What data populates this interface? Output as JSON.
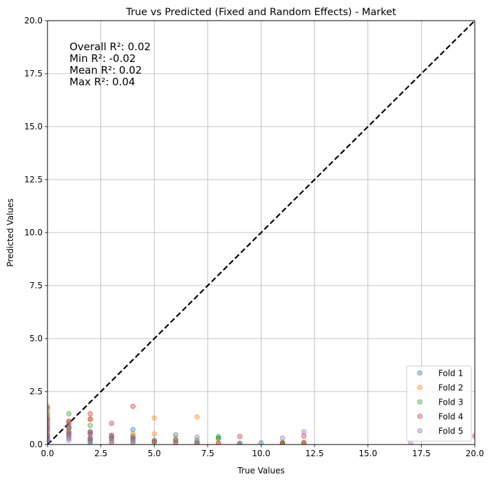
{
  "chart_data": {
    "type": "scatter",
    "title": "True vs Predicted (Fixed and Random Effects) - Market",
    "xlabel": "True Values",
    "ylabel": "Predicted Values",
    "xlim": [
      0,
      20
    ],
    "ylim": [
      0,
      20
    ],
    "xticks": [
      "0.0",
      "2.5",
      "5.0",
      "7.5",
      "10.0",
      "12.5",
      "15.0",
      "17.5",
      "20.0"
    ],
    "yticks": [
      "0.0",
      "2.5",
      "5.0",
      "7.5",
      "10.0",
      "12.5",
      "15.0",
      "17.5",
      "20.0"
    ],
    "grid": true,
    "legend_position": "bottom-right",
    "reference_line": {
      "label": "y = x",
      "from": [
        0,
        0
      ],
      "to": [
        20,
        20
      ],
      "color": "#000000",
      "style": "dashed"
    },
    "annotations": [
      "Overall R²: 0.02",
      "Min R²: -0.02",
      "Mean R²: 0.02",
      "Max R²: 0.04"
    ],
    "series": [
      {
        "name": "Fold 1",
        "color": "#1f77b4",
        "points": [
          [
            0,
            1.3
          ],
          [
            0,
            0.9
          ],
          [
            0,
            0.5
          ],
          [
            0,
            0.2
          ],
          [
            1,
            0.8
          ],
          [
            1,
            0.5
          ],
          [
            1,
            0.3
          ],
          [
            2,
            0.6
          ],
          [
            2,
            0.3
          ],
          [
            2,
            0.1
          ],
          [
            3,
            0.3
          ],
          [
            3,
            0.1
          ],
          [
            4,
            0.7
          ],
          [
            4,
            0.3
          ],
          [
            5,
            0.2
          ],
          [
            6,
            0.45
          ],
          [
            6,
            0.2
          ],
          [
            7,
            0.1
          ],
          [
            8,
            0.3
          ],
          [
            9,
            0.05
          ],
          [
            10,
            0.08
          ],
          [
            11,
            0.05
          ],
          [
            12,
            0.05
          ]
        ]
      },
      {
        "name": "Fold 2",
        "color": "#ff7f0e",
        "points": [
          [
            0,
            1.4
          ],
          [
            0,
            1.0
          ],
          [
            0,
            0.6
          ],
          [
            0,
            0.3
          ],
          [
            1,
            1.1
          ],
          [
            1,
            0.7
          ],
          [
            1,
            0.4
          ],
          [
            2,
            1.2
          ],
          [
            2,
            0.5
          ],
          [
            2,
            0.2
          ],
          [
            3,
            0.4
          ],
          [
            3,
            0.1
          ],
          [
            4,
            0.5
          ],
          [
            4,
            0.2
          ],
          [
            5,
            1.25
          ],
          [
            5,
            0.5
          ],
          [
            6,
            0.3
          ],
          [
            7,
            1.3
          ],
          [
            8,
            0.1
          ],
          [
            11,
            0.05
          ],
          [
            12,
            0.05
          ],
          [
            18,
            0.65
          ]
        ]
      },
      {
        "name": "Fold 3",
        "color": "#2ca02c",
        "points": [
          [
            0,
            1.8
          ],
          [
            0,
            1.5
          ],
          [
            0,
            1.1
          ],
          [
            0,
            0.7
          ],
          [
            0,
            0.3
          ],
          [
            1,
            1.45
          ],
          [
            1,
            1.0
          ],
          [
            1,
            0.6
          ],
          [
            2,
            0.9
          ],
          [
            2,
            0.5
          ],
          [
            2,
            0.2
          ],
          [
            3,
            0.3
          ],
          [
            4,
            0.4
          ],
          [
            4,
            0.1
          ],
          [
            5,
            0.1
          ],
          [
            6,
            0.2
          ],
          [
            7,
            0.2
          ],
          [
            8,
            0.38
          ],
          [
            8,
            0.3
          ],
          [
            9,
            0.05
          ],
          [
            11,
            0.1
          ]
        ]
      },
      {
        "name": "Fold 4",
        "color": "#d62728",
        "points": [
          [
            0,
            1.7
          ],
          [
            0,
            1.2
          ],
          [
            0,
            0.8
          ],
          [
            0,
            0.4
          ],
          [
            1,
            1.1
          ],
          [
            1,
            0.8
          ],
          [
            1,
            0.5
          ],
          [
            2,
            1.45
          ],
          [
            2,
            1.2
          ],
          [
            2,
            0.6
          ],
          [
            2,
            0.3
          ],
          [
            3,
            1.0
          ],
          [
            3,
            0.4
          ],
          [
            4,
            1.8
          ],
          [
            4,
            0.3
          ],
          [
            5,
            0.15
          ],
          [
            6,
            0.1
          ],
          [
            7,
            0.05
          ],
          [
            8,
            0.05
          ],
          [
            9,
            0.38
          ],
          [
            11,
            0.05
          ],
          [
            12,
            0.4
          ],
          [
            12,
            0.1
          ],
          [
            20,
            0.4
          ]
        ]
      },
      {
        "name": "Fold 5",
        "color": "#9467bd",
        "points": [
          [
            0,
            1.0
          ],
          [
            0,
            0.7
          ],
          [
            0,
            0.45
          ],
          [
            0,
            0.25
          ],
          [
            0,
            0.1
          ],
          [
            1,
            0.9
          ],
          [
            1,
            0.6
          ],
          [
            1,
            0.4
          ],
          [
            1,
            0.2
          ],
          [
            2,
            0.5
          ],
          [
            2,
            0.3
          ],
          [
            2,
            0.15
          ],
          [
            3,
            0.45
          ],
          [
            3,
            0.2
          ],
          [
            4,
            0.3
          ],
          [
            4,
            0.15
          ],
          [
            6,
            0.1
          ],
          [
            7,
            0.35
          ],
          [
            9,
            0.05
          ],
          [
            11,
            0.3
          ],
          [
            12,
            0.6
          ],
          [
            17,
            0.1
          ]
        ]
      }
    ]
  }
}
